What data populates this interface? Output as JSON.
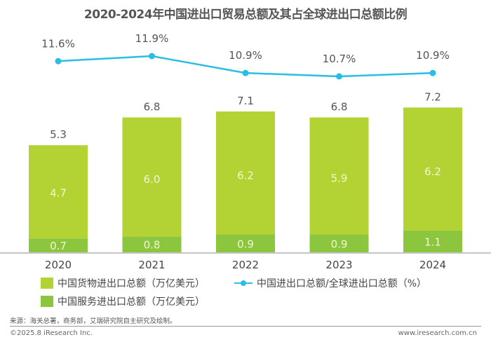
{
  "title": "2020-2024年中国进出口贸易总额及其占全球进出口总额比例",
  "chart_data": {
    "type": "bar",
    "subtype": "stacked bar with line overlay",
    "title": "2020-2024年中国进出口贸易总额及其占全球进出口总额比例",
    "categories": [
      "2020",
      "2021",
      "2022",
      "2023",
      "2024"
    ],
    "series": [
      {
        "name": "中国服务进出口总额（万亿美元）",
        "type": "bar",
        "color": "#8cc63f",
        "values": [
          0.7,
          0.8,
          0.9,
          0.9,
          1.1
        ],
        "labels": [
          "0.7",
          "0.8",
          "0.9",
          "0.9",
          "1.1"
        ]
      },
      {
        "name": "中国货物进出口总额（万亿美元）",
        "type": "bar",
        "color": "#b3d335",
        "values": [
          4.7,
          6.0,
          6.2,
          5.9,
          6.2
        ],
        "labels": [
          "4.7",
          "6.0",
          "6.2",
          "5.9",
          "6.2"
        ]
      },
      {
        "name": "中国进出口总额/全球进出口总额（%）",
        "type": "line",
        "color": "#2bbde5",
        "values": [
          11.6,
          11.9,
          10.9,
          10.7,
          10.9
        ],
        "labels": [
          "11.6%",
          "11.9%",
          "10.9%",
          "10.7%",
          "10.9%"
        ]
      }
    ],
    "totals": [
      5.3,
      6.8,
      7.1,
      6.8,
      7.2
    ],
    "total_labels": [
      "5.3",
      "6.8",
      "7.1",
      "6.8",
      "7.2"
    ],
    "xlabel": "",
    "ylabel": "",
    "grid": false,
    "legend_position": "bottom"
  },
  "legend": {
    "goods": "中国货物进出口总额（万亿美元）",
    "services": "中国服务进出口总额（万亿美元）",
    "ratio": "中国进出口总额/全球进出口总额（%）"
  },
  "footer": {
    "source": "来源：海关总署，商务部，艾瑞研究院自主研究及绘制。",
    "copyright": "©2025.8 iResearch Inc.",
    "website": "www.iresearch.com.cn"
  }
}
